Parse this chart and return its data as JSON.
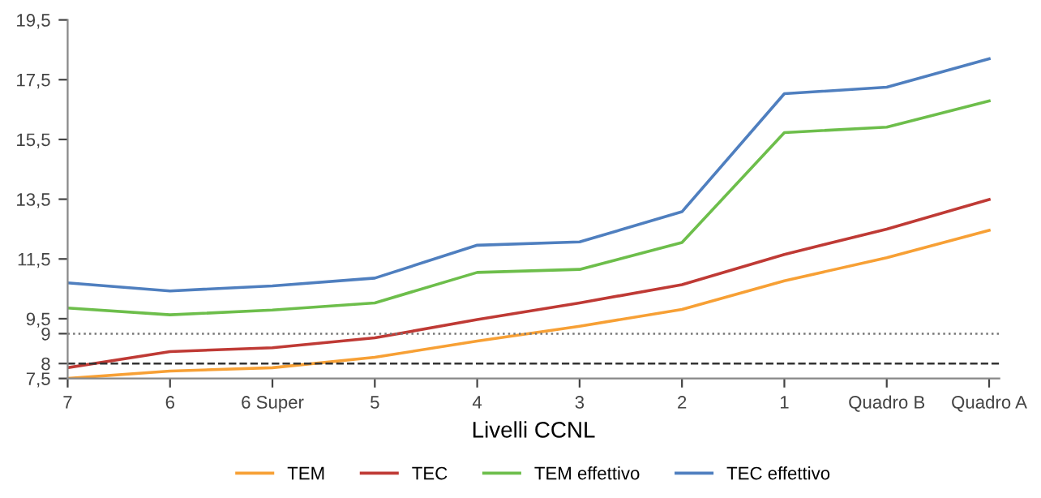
{
  "chart_data": {
    "type": "line",
    "xlabel": "Livelli CCNL",
    "categories": [
      "7",
      "6",
      "6 Super",
      "5",
      "4",
      "3",
      "2",
      "1",
      "Quadro B",
      "Quadro A"
    ],
    "series": [
      {
        "name": "TEM",
        "color": "#f7a035",
        "values": [
          7.5,
          7.75,
          7.86,
          8.21,
          8.75,
          9.25,
          9.81,
          10.77,
          11.54,
          12.46
        ]
      },
      {
        "name": "TEC",
        "color": "#bf3a35",
        "values": [
          7.86,
          8.4,
          8.53,
          8.86,
          9.47,
          10.03,
          10.64,
          11.65,
          12.5,
          13.49
        ]
      },
      {
        "name": "TEM effettivo",
        "color": "#6dbe4b",
        "values": [
          9.86,
          9.63,
          9.79,
          10.03,
          11.05,
          11.15,
          12.05,
          15.73,
          15.91,
          16.79
        ]
      },
      {
        "name": "TEC effettivo",
        "color": "#4f7fbf",
        "values": [
          10.7,
          10.43,
          10.6,
          10.86,
          11.96,
          12.07,
          13.08,
          17.03,
          17.25,
          18.2
        ]
      }
    ],
    "ylim": [
      7.5,
      19.5
    ],
    "yticks": [
      {
        "value": 7.5,
        "label": "7,5"
      },
      {
        "value": 8,
        "label": "8"
      },
      {
        "value": 9,
        "label": "9"
      },
      {
        "value": 9.5,
        "label": "9,5"
      },
      {
        "value": 11.5,
        "label": "11,5"
      },
      {
        "value": 13.5,
        "label": "13,5"
      },
      {
        "value": 15.5,
        "label": "15,5"
      },
      {
        "value": 17.5,
        "label": "17,5"
      },
      {
        "value": 19.5,
        "label": "19,5"
      }
    ],
    "ref_lines": [
      {
        "axis": "y",
        "value": 9,
        "color": "#777777",
        "line_style": "dotted"
      },
      {
        "axis": "y",
        "value": 8,
        "color": "#333333",
        "line_style": "dashed"
      }
    ],
    "grid": false,
    "legend": "bottom",
    "marker": "none",
    "line_style": "solid"
  }
}
